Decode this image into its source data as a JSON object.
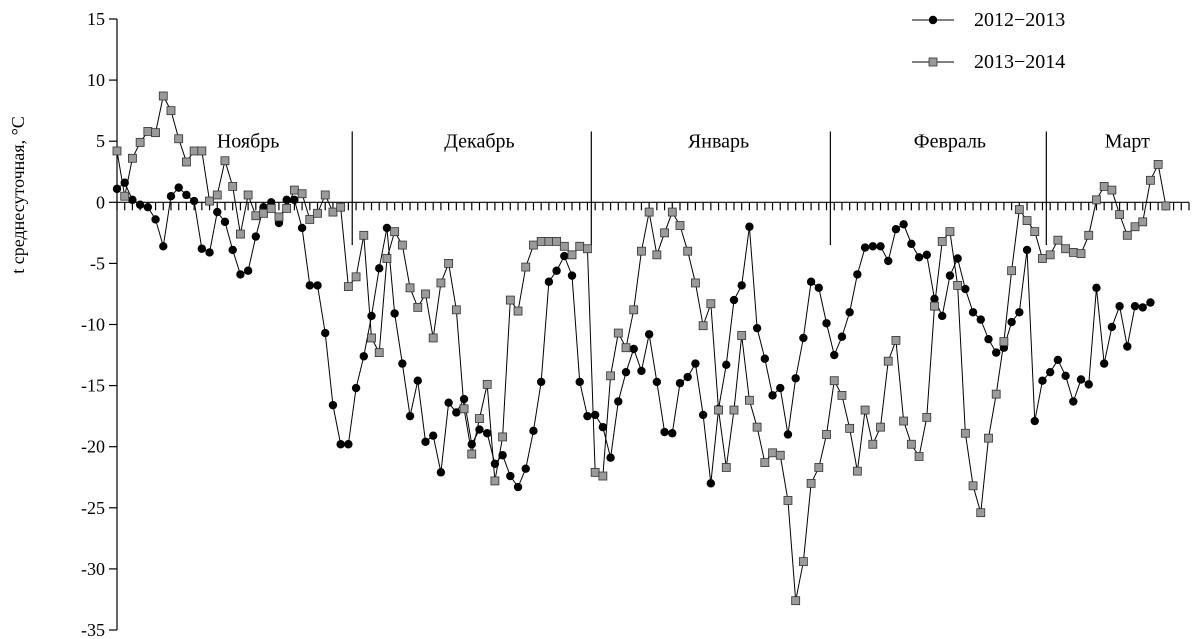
{
  "chart_data": {
    "type": "line",
    "ylabel": "t среднесуточная, °C",
    "ylim": [
      -35,
      15
    ],
    "yticks": [
      15,
      10,
      5,
      0,
      -5,
      -10,
      -15,
      -20,
      -25,
      -30,
      -35
    ],
    "x_range": [
      1,
      140
    ],
    "month_labels": [
      {
        "text": "Ноябрь",
        "x_center": 18
      },
      {
        "text": "Декабрь",
        "x_center": 48
      },
      {
        "text": "Январь",
        "x_center": 79
      },
      {
        "text": "Февраль",
        "x_center": 109
      },
      {
        "text": "Март",
        "x_center": 132
      }
    ],
    "month_dividers": [
      31,
      62,
      93,
      121
    ],
    "legend_position": "top-right",
    "series": [
      {
        "name": "2012−2013",
        "marker": "circle",
        "color": "#000000",
        "values": [
          1.1,
          1.6,
          0.2,
          -0.2,
          -0.4,
          -1.4,
          -3.6,
          0.5,
          1.2,
          0.6,
          0.1,
          -3.8,
          -4.1,
          -0.8,
          -1.6,
          -3.9,
          -5.9,
          -5.6,
          -2.8,
          -0.4,
          0.0,
          -1.7,
          0.2,
          0.2,
          -2.1,
          -6.8,
          -6.8,
          -10.7,
          -16.6,
          -19.8,
          -19.8,
          -15.2,
          -12.6,
          -9.3,
          -5.4,
          -2.1,
          -9.1,
          -13.2,
          -17.5,
          -14.6,
          -19.6,
          -19.1,
          -22.1,
          -16.4,
          -17.2,
          -16.1,
          -19.8,
          -18.6,
          -18.9,
          -21.4,
          -20.7,
          -22.4,
          -23.3,
          -21.8,
          -18.7,
          -14.7,
          -6.5,
          -5.6,
          -4.4,
          -6.0,
          -14.7,
          -17.5,
          -17.4,
          -18.4,
          -20.9,
          -16.3,
          -13.9,
          -12.0,
          -13.8,
          -10.8,
          -14.7,
          -18.8,
          -18.9,
          -14.8,
          -14.3,
          -13.2,
          -17.4,
          -23.0,
          -16.9,
          -13.3,
          -8.0,
          -6.8,
          -2.0,
          -10.3,
          -12.8,
          -15.8,
          -15.2,
          -19.0,
          -14.4,
          -11.1,
          -6.5,
          -7.0,
          -9.9,
          -12.5,
          -11.0,
          -9.0,
          -5.9,
          -3.7,
          -3.6,
          -3.6,
          -4.8,
          -2.2,
          -1.8,
          -3.4,
          -4.5,
          -4.3,
          -7.9,
          -9.3,
          -6.0,
          -4.6,
          -7.1,
          -9.0,
          -9.6,
          -11.2,
          -12.3,
          -11.9,
          -9.8,
          -9.0,
          -3.9,
          -17.9,
          -14.6,
          -13.9,
          -12.9,
          -14.2,
          -16.3,
          -14.5,
          -14.9,
          -7.0,
          -13.2,
          -10.2,
          -8.5,
          -11.8,
          -8.5,
          -8.6,
          -8.2
        ]
      },
      {
        "name": "2013−2014",
        "marker": "square",
        "color": "#9a9a9a",
        "values": [
          4.2,
          0.5,
          3.6,
          4.9,
          5.8,
          5.7,
          8.7,
          7.5,
          5.2,
          3.3,
          4.2,
          4.2,
          0.1,
          0.6,
          3.4,
          1.3,
          -2.6,
          0.6,
          -1.1,
          -0.9,
          -0.5,
          -1.2,
          -0.5,
          1.0,
          0.7,
          -1.4,
          -0.9,
          0.6,
          -0.8,
          -0.4,
          -6.9,
          -6.1,
          -2.7,
          -11.1,
          -12.3,
          -4.6,
          -2.4,
          -3.5,
          -7.0,
          -8.6,
          -7.5,
          -11.1,
          -6.6,
          -5.0,
          -8.8,
          -16.9,
          -20.6,
          -17.7,
          -14.9,
          -22.8,
          -19.2,
          -8.0,
          -8.9,
          -5.3,
          -3.5,
          -3.2,
          -3.2,
          -3.2,
          -3.6,
          -4.3,
          -3.6,
          -3.8,
          -22.1,
          -22.4,
          -14.2,
          -10.7,
          -11.9,
          -8.8,
          -4.0,
          -0.8,
          -4.3,
          -2.5,
          -0.8,
          -1.9,
          -4.0,
          -6.6,
          -10.1,
          -8.3,
          -17.0,
          -21.7,
          -17.0,
          -10.9,
          -16.2,
          -18.4,
          -21.3,
          -20.5,
          -20.7,
          -24.4,
          -32.6,
          -29.4,
          -23.0,
          -21.7,
          -19.0,
          -14.6,
          -15.8,
          -18.5,
          -22.0,
          -17.0,
          -19.8,
          -18.4,
          -13.0,
          -11.3,
          -17.9,
          -19.8,
          -20.8,
          -17.6,
          -8.5,
          -3.2,
          -2.4,
          -6.8,
          -18.9,
          -23.2,
          -25.4,
          -19.3,
          -15.7,
          -11.4,
          -5.6,
          -0.6,
          -1.5,
          -2.4,
          -4.6,
          -4.3,
          -3.1,
          -3.8,
          -4.1,
          -4.2,
          -2.7,
          0.2,
          1.3,
          1.0,
          -1.0,
          -2.7,
          -2.0,
          -1.6,
          1.8,
          3.1,
          -0.3
        ]
      }
    ]
  }
}
